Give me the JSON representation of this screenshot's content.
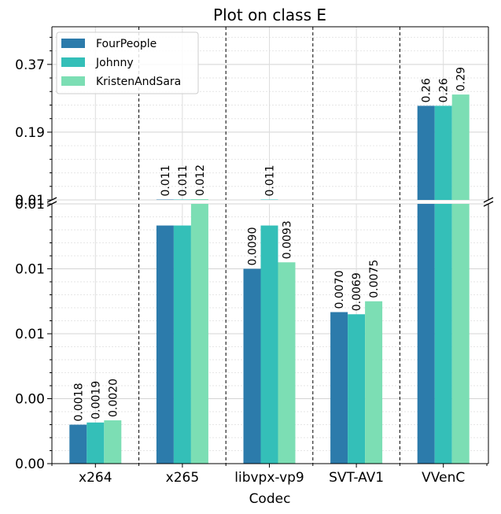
{
  "chart_data": {
    "type": "bar",
    "title": "Plot on class E",
    "xlabel": "Codec",
    "ylabel": "",
    "categories": [
      "x264",
      "x265",
      "libvpx-vp9",
      "SVT-AV1",
      "VVenC"
    ],
    "series": [
      {
        "name": "FourPeople",
        "values": [
          0.0018,
          0.011,
          0.009,
          0.007,
          0.26
        ],
        "labels": [
          "0.0018",
          "0.011",
          "0.0090",
          "0.0070",
          "0.26"
        ],
        "color": "#2c7bab"
      },
      {
        "name": "Johnny",
        "values": [
          0.0019,
          0.011,
          0.011,
          0.0069,
          0.26
        ],
        "labels": [
          "0.0019",
          "0.011",
          "0.011",
          "0.0069",
          "0.26"
        ],
        "color": "#34bfb8"
      },
      {
        "name": "KristenAndSara",
        "values": [
          0.002,
          0.012,
          0.0093,
          0.0075,
          0.29
        ],
        "labels": [
          "0.0020",
          "0.012",
          "0.0093",
          "0.0075",
          "0.29"
        ],
        "color": "#7cdeb4"
      }
    ],
    "broken_axis": true,
    "lower_axis": {
      "ylim": [
        0,
        0.012
      ],
      "ticks": [
        0,
        0.003,
        0.006,
        0.009,
        0.012
      ],
      "tick_labels": [
        "0.00",
        "0.00",
        "0.01",
        "0.01",
        "0.01"
      ]
    },
    "upper_axis": {
      "ylim": [
        0.01,
        0.47
      ],
      "ticks": [
        0.01,
        0.19,
        0.37
      ],
      "tick_labels": [
        "0.01",
        "0.19",
        "0.37"
      ]
    },
    "grid": true,
    "legend_position": "top-left"
  }
}
